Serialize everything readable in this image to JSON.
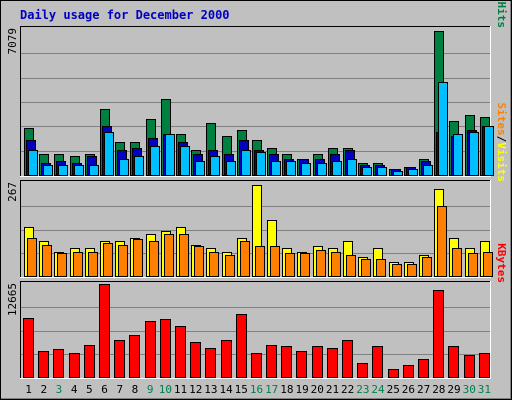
{
  "chart_data": {
    "title": "Daily usage for December 2000",
    "type": "bar",
    "categories": [
      "1",
      "2",
      "3",
      "4",
      "5",
      "6",
      "7",
      "8",
      "9",
      "10",
      "11",
      "12",
      "13",
      "14",
      "15",
      "16",
      "17",
      "18",
      "19",
      "20",
      "21",
      "22",
      "23",
      "24",
      "25",
      "26",
      "27",
      "28",
      "29",
      "30",
      "31"
    ],
    "weekend_days": [
      "3",
      "9",
      "10",
      "16",
      "17",
      "23",
      "24",
      "30",
      "31"
    ],
    "panels": [
      {
        "id": "hits-files-pages",
        "ymax_label": "7079",
        "ylim": [
          0,
          7079
        ],
        "legend": [
          "Pages",
          "/",
          "Files",
          "/",
          "Hits"
        ],
        "series": [
          {
            "name": "Hits",
            "color": "#008040",
            "values": [
              2300,
              1000,
              1000,
              900,
              1000,
              3200,
              1600,
              1600,
              2700,
              3700,
              2000,
              1200,
              2500,
              1900,
              2200,
              1700,
              1300,
              1000,
              800,
              1000,
              1300,
              1300,
              600,
              600,
              300,
              400,
              800,
              7000,
              2600,
              2900,
              2800
            ]
          },
          {
            "name": "Files",
            "color": "#0000c0",
            "values": [
              1700,
              600,
              700,
              600,
              900,
              2400,
              1200,
              1300,
              1800,
              2000,
              1600,
              1000,
              1200,
              1000,
              1700,
              1200,
              1000,
              800,
              800,
              800,
              1000,
              1200,
              500,
              500,
              300,
              400,
              700,
              2100,
              1900,
              2200,
              2400
            ]
          },
          {
            "name": "Pages",
            "color": "#00bfff",
            "values": [
              1200,
              500,
              500,
              500,
              500,
              2100,
              800,
              900,
              1400,
              2000,
              1400,
              700,
              900,
              700,
              1200,
              1100,
              700,
              700,
              600,
              600,
              700,
              800,
              400,
              400,
              200,
              300,
              500,
              4500,
              2000,
              2100,
              2400
            ]
          }
        ]
      },
      {
        "id": "visits-sites",
        "ymax_label": "267",
        "ylim": [
          0,
          267
        ],
        "legend": [
          "Sites",
          "/",
          "Visits"
        ],
        "series": [
          {
            "name": "Visits",
            "color": "#ffff00",
            "values": [
              140,
              100,
              70,
              80,
              80,
              100,
              100,
              110,
              120,
              130,
              140,
              90,
              80,
              70,
              110,
              260,
              160,
              80,
              70,
              85,
              80,
              100,
              55,
              80,
              40,
              40,
              60,
              250,
              110,
              80,
              100
            ]
          },
          {
            "name": "Sites",
            "color": "#ff8000",
            "values": [
              110,
              90,
              65,
              70,
              70,
              95,
              90,
              105,
              100,
              120,
              120,
              85,
              70,
              60,
              100,
              85,
              85,
              65,
              65,
              75,
              70,
              60,
              50,
              50,
              35,
              35,
              55,
              200,
              80,
              65,
              70
            ]
          }
        ]
      },
      {
        "id": "kbytes",
        "ymax_label": "12665",
        "ylim": [
          0,
          12665
        ],
        "legend": [
          "KBytes"
        ],
        "series": [
          {
            "name": "KBytes",
            "color": "#ff0000",
            "values": [
              8000,
              3500,
              3800,
              3300,
              4300,
              12665,
              5000,
              5700,
              7600,
              7900,
              7000,
              4800,
              3900,
              5000,
              8600,
              3300,
              4300,
              4200,
              3600,
              4200,
              4000,
              5100,
              1900,
              4200,
              1100,
              1600,
              2500,
              11900,
              4200,
              3000,
              3300
            ]
          }
        ]
      }
    ],
    "colors": {
      "title": "#0000c0",
      "weekday_label": "#000000",
      "weekend_label": "#00804a",
      "plot_bg": "#c0c0c0",
      "frame_bg": "#c0c0c0",
      "grid": "#808080"
    }
  }
}
